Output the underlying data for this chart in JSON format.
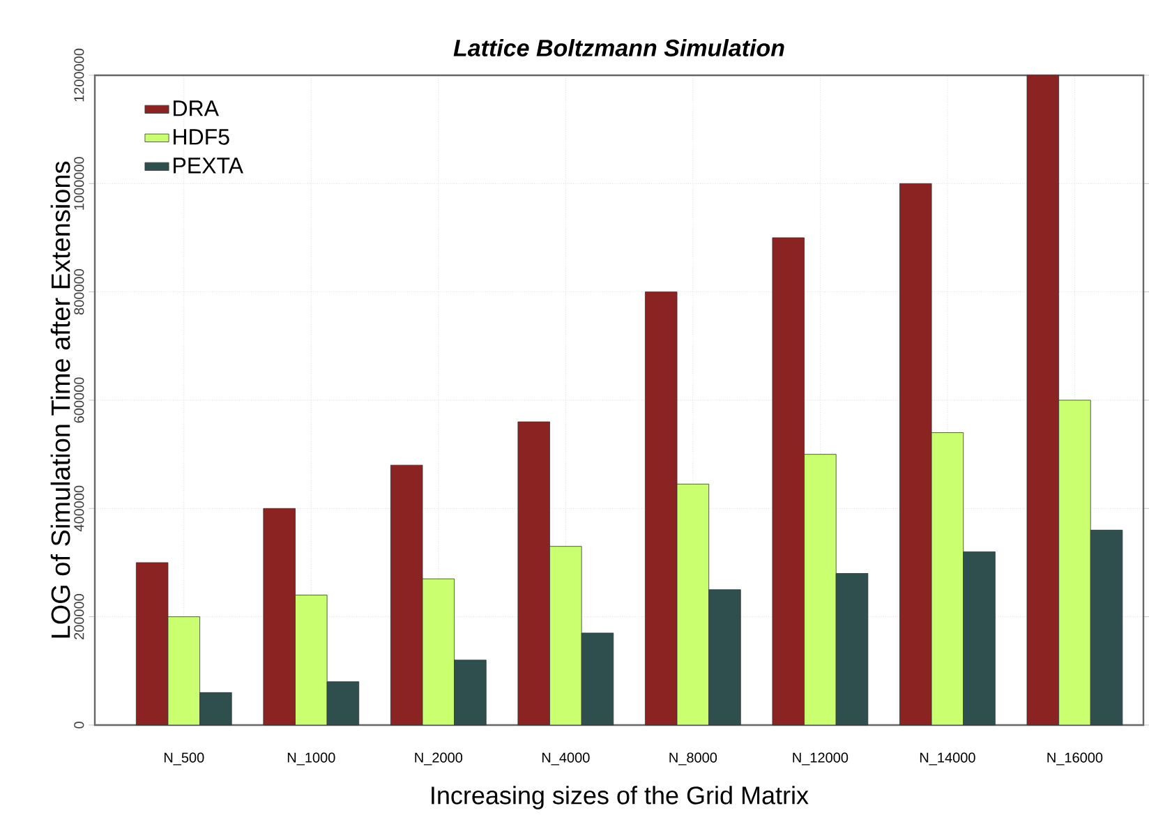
{
  "chart_data": {
    "type": "bar",
    "title": "Lattice Boltzmann Simulation",
    "xlabel": "Increasing sizes of the Grid Matrix",
    "ylabel": "LOG of Simulation Time after Extensions",
    "categories": [
      "N_500",
      "N_1000",
      "N_2000",
      "N_4000",
      "N_8000",
      "N_12000",
      "N_14000",
      "N_16000"
    ],
    "series": [
      {
        "name": "DRA",
        "color": "#8b2323",
        "values": [
          300000,
          400000,
          480000,
          560000,
          800000,
          900000,
          1000000,
          1200000
        ]
      },
      {
        "name": "HDF5",
        "color": "#caff70",
        "values": [
          200000,
          240000,
          270000,
          330000,
          445000,
          500000,
          540000,
          600000
        ]
      },
      {
        "name": "PEXTA",
        "color": "#2f4f4f",
        "values": [
          60000,
          80000,
          120000,
          170000,
          250000,
          280000,
          320000,
          360000
        ]
      }
    ],
    "ylim": [
      0,
      1200000
    ],
    "yticks": [
      0,
      200000,
      400000,
      600000,
      800000,
      1000000,
      1200000
    ],
    "grid": true,
    "legend": "top left"
  }
}
